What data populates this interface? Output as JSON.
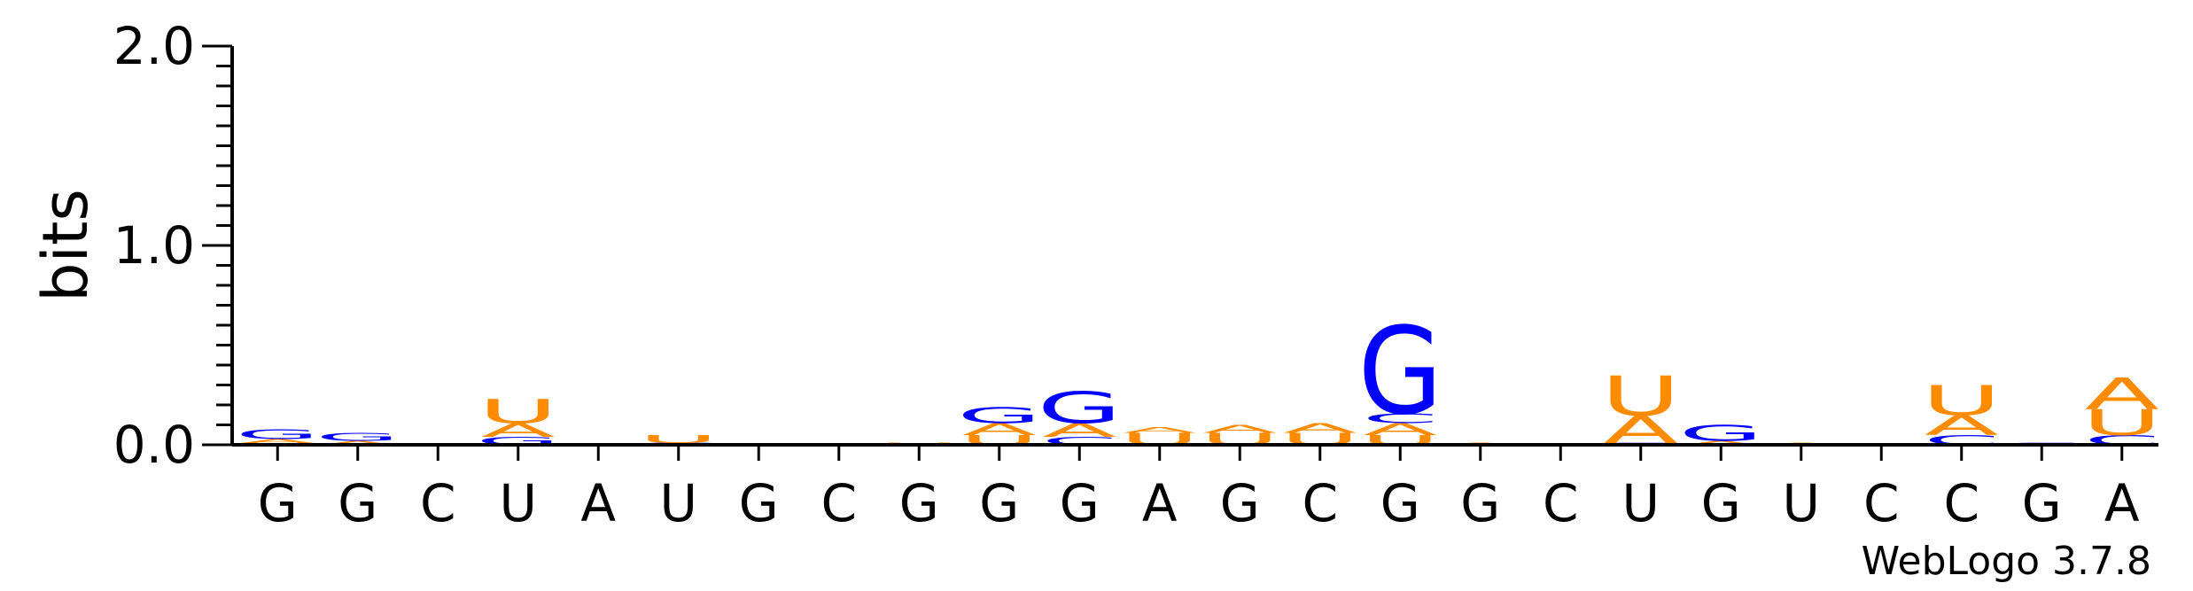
{
  "chart_data": {
    "type": "sequence-logo",
    "title": "",
    "ylabel": "bits",
    "xlabel": "",
    "ylim": [
      0,
      2.0
    ],
    "yticks": [
      "0.0",
      "1.0",
      "2.0"
    ],
    "grid": false,
    "credit": "WebLogo 3.7.8",
    "colors": {
      "A": "#ff8c00",
      "U": "#ff8c00",
      "G": "#0000ff",
      "C": "#0000ff"
    },
    "positions": [
      {
        "label": "G",
        "stack": [
          {
            "l": "U",
            "h": 0.01
          },
          {
            "l": "A",
            "h": 0.02
          },
          {
            "l": "G",
            "h": 0.05
          }
        ]
      },
      {
        "label": "G",
        "stack": [
          {
            "l": "A",
            "h": 0.02
          },
          {
            "l": "G",
            "h": 0.04
          }
        ]
      },
      {
        "label": "C",
        "stack": []
      },
      {
        "label": "U",
        "stack": [
          {
            "l": "G",
            "h": 0.04
          },
          {
            "l": "A",
            "h": 0.07
          },
          {
            "l": "U",
            "h": 0.12
          }
        ]
      },
      {
        "label": "A",
        "stack": []
      },
      {
        "label": "U",
        "stack": [
          {
            "l": "G",
            "h": 0.01
          },
          {
            "l": "U",
            "h": 0.04
          }
        ]
      },
      {
        "label": "G",
        "stack": []
      },
      {
        "label": "C",
        "stack": []
      },
      {
        "label": "G",
        "stack": [
          {
            "l": "U",
            "h": 0.01
          }
        ]
      },
      {
        "label": "G",
        "stack": [
          {
            "l": "U",
            "h": 0.05
          },
          {
            "l": "A",
            "h": 0.06
          },
          {
            "l": "G",
            "h": 0.08
          }
        ]
      },
      {
        "label": "G",
        "stack": [
          {
            "l": "C",
            "h": 0.04
          },
          {
            "l": "A",
            "h": 0.07
          },
          {
            "l": "G",
            "h": 0.16
          }
        ]
      },
      {
        "label": "A",
        "stack": [
          {
            "l": "U",
            "h": 0.06
          },
          {
            "l": "A",
            "h": 0.03
          }
        ]
      },
      {
        "label": "G",
        "stack": [
          {
            "l": "U",
            "h": 0.06
          },
          {
            "l": "A",
            "h": 0.04
          }
        ]
      },
      {
        "label": "C",
        "stack": [
          {
            "l": "U",
            "h": 0.06
          },
          {
            "l": "A",
            "h": 0.05
          }
        ]
      },
      {
        "label": "G",
        "stack": [
          {
            "l": "U",
            "h": 0.05
          },
          {
            "l": "A",
            "h": 0.06
          },
          {
            "l": "C",
            "h": 0.05
          },
          {
            "l": "G",
            "h": 0.44
          }
        ]
      },
      {
        "label": "G",
        "stack": [
          {
            "l": "A",
            "h": 0.01
          }
        ]
      },
      {
        "label": "C",
        "stack": []
      },
      {
        "label": "U",
        "stack": [
          {
            "l": "G",
            "h": 0.01
          },
          {
            "l": "A",
            "h": 0.14
          },
          {
            "l": "U",
            "h": 0.2
          }
        ]
      },
      {
        "label": "G",
        "stack": [
          {
            "l": "A",
            "h": 0.02
          },
          {
            "l": "G",
            "h": 0.08
          }
        ]
      },
      {
        "label": "U",
        "stack": [
          {
            "l": "A",
            "h": 0.01
          }
        ]
      },
      {
        "label": "C",
        "stack": []
      },
      {
        "label": "C",
        "stack": [
          {
            "l": "C",
            "h": 0.05
          },
          {
            "l": "A",
            "h": 0.1
          },
          {
            "l": "U",
            "h": 0.15
          }
        ]
      },
      {
        "label": "G",
        "stack": [
          {
            "l": "C",
            "h": 0.01
          }
        ]
      },
      {
        "label": "A",
        "stack": [
          {
            "l": "C",
            "h": 0.05
          },
          {
            "l": "U",
            "h": 0.13
          },
          {
            "l": "A",
            "h": 0.16
          }
        ]
      }
    ]
  }
}
